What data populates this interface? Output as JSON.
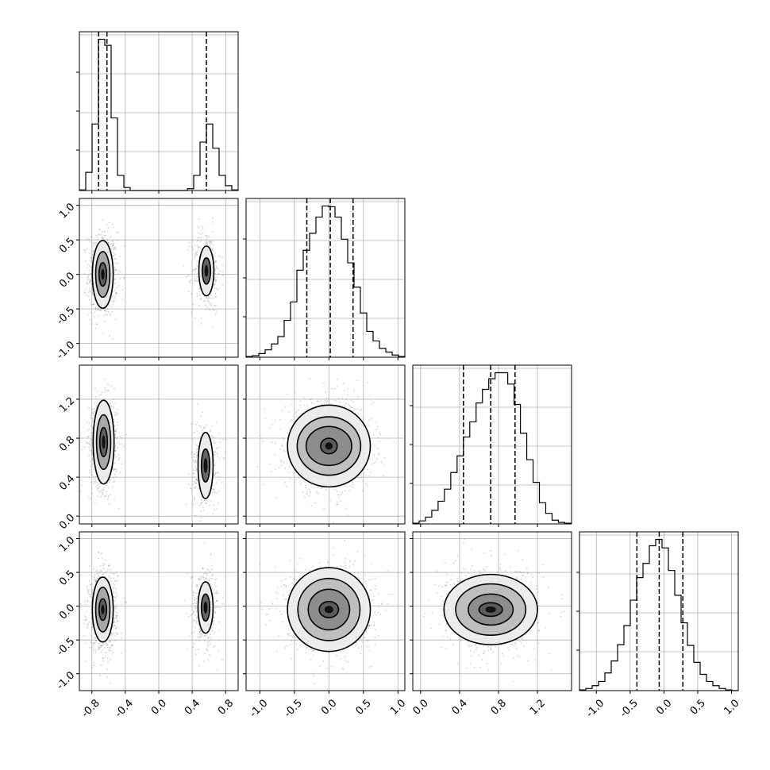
{
  "chart_data": {
    "type": "corner",
    "parameters": [
      "p1",
      "p2",
      "p3",
      "p4"
    ],
    "grid": true,
    "axes": {
      "p1": {
        "lim": [
          -0.95,
          0.95
        ],
        "ticks": [
          "-0.8",
          "-0.4",
          "0.0",
          "0.4",
          "0.8"
        ],
        "tick_values": [
          -0.8,
          -0.4,
          0.0,
          0.4,
          0.8
        ]
      },
      "p2": {
        "lim": [
          -1.2,
          1.1
        ],
        "ticks": [
          "-1.0",
          "-0.5",
          "0.0",
          "0.5",
          "1.0"
        ],
        "tick_values": [
          -1.0,
          -0.5,
          0.0,
          0.5,
          1.0
        ]
      },
      "p3": {
        "lim": [
          -0.08,
          1.55
        ],
        "ticks": [
          "0.0",
          "0.4",
          "0.8",
          "1.2"
        ],
        "tick_values": [
          0.0,
          0.4,
          0.8,
          1.2
        ]
      },
      "p4": {
        "lim": [
          -1.25,
          1.1
        ],
        "ticks": [
          "-1.0",
          "-0.5",
          "0.0",
          "0.5",
          "1.0"
        ],
        "tick_values": [
          -1.0,
          -0.5,
          0.0,
          0.5,
          1.0
        ]
      }
    },
    "histograms": [
      {
        "param": "p1",
        "bin_edges": [
          -0.95,
          -0.874,
          -0.798,
          -0.722,
          -0.646,
          -0.57,
          -0.494,
          -0.418,
          -0.342,
          -0.266,
          -0.19,
          -0.114,
          -0.038,
          0.038,
          0.114,
          0.19,
          0.266,
          0.342,
          0.418,
          0.494,
          0.57,
          0.646,
          0.722,
          0.798,
          0.874,
          0.95
        ],
        "counts": [
          1,
          30,
          110,
          250,
          240,
          120,
          25,
          5,
          0,
          0,
          0,
          0,
          0,
          0,
          0,
          0,
          0,
          3,
          25,
          80,
          110,
          70,
          25,
          8,
          1
        ],
        "quantiles": [
          -0.72,
          -0.62,
          0.57
        ]
      },
      {
        "param": "p2",
        "bin_edges": [
          -1.2,
          -1.108,
          -1.016,
          -0.924,
          -0.832,
          -0.74,
          -0.648,
          -0.556,
          -0.464,
          -0.372,
          -0.28,
          -0.188,
          -0.096,
          -0.004,
          0.088,
          0.18,
          0.272,
          0.364,
          0.456,
          0.548,
          0.64,
          0.732,
          0.824,
          0.916,
          1.008,
          1.1
        ],
        "counts": [
          1,
          2,
          5,
          10,
          18,
          28,
          50,
          75,
          118,
          145,
          168,
          190,
          205,
          204,
          190,
          160,
          128,
          95,
          60,
          35,
          22,
          12,
          7,
          3,
          1
        ],
        "quantiles": [
          -0.32,
          0.02,
          0.35
        ]
      },
      {
        "param": "p3",
        "bin_edges": [
          -0.08,
          -0.015,
          0.05,
          0.115,
          0.18,
          0.245,
          0.31,
          0.375,
          0.44,
          0.505,
          0.57,
          0.635,
          0.7,
          0.765,
          0.83,
          0.895,
          0.96,
          1.025,
          1.09,
          1.155,
          1.22,
          1.285,
          1.35,
          1.415,
          1.48,
          1.545
        ],
        "counts": [
          1,
          4,
          9,
          18,
          30,
          46,
          68,
          90,
          115,
          135,
          160,
          178,
          192,
          200,
          200,
          185,
          158,
          120,
          85,
          55,
          28,
          14,
          5,
          2,
          1
        ],
        "quantiles": [
          0.44,
          0.72,
          0.97
        ]
      },
      {
        "param": "p4",
        "bin_edges": [
          -1.25,
          -1.156,
          -1.062,
          -0.968,
          -0.874,
          -0.78,
          -0.686,
          -0.592,
          -0.498,
          -0.404,
          -0.31,
          -0.216,
          -0.122,
          -0.028,
          0.066,
          0.16,
          0.254,
          0.348,
          0.442,
          0.536,
          0.63,
          0.724,
          0.818,
          0.912,
          1.006,
          1.1
        ],
        "counts": [
          1,
          3,
          7,
          13,
          25,
          42,
          65,
          92,
          128,
          160,
          180,
          205,
          214,
          202,
          170,
          135,
          96,
          64,
          40,
          23,
          13,
          7,
          3,
          1,
          0
        ],
        "quantiles": [
          -0.4,
          -0.07,
          0.28
        ]
      }
    ],
    "pairs": [
      {
        "x": "p1",
        "y": "p2",
        "blobs": [
          {
            "cx": -0.67,
            "cy": 0.0,
            "sx": 0.075,
            "sy": 0.27,
            "weight": 0.68
          },
          {
            "cx": 0.57,
            "cy": 0.05,
            "sx": 0.075,
            "sy": 0.27,
            "weight": 0.32
          }
        ],
        "contours": [
          {
            "cx": -0.67,
            "cy": 0.0,
            "rx": [
              0.045,
              0.085,
              0.125
            ],
            "ry": [
              0.17,
              0.33,
              0.49
            ]
          },
          {
            "cx": 0.57,
            "cy": 0.05,
            "rx": [
              0.05,
              0.09
            ],
            "ry": [
              0.19,
              0.36
            ]
          }
        ]
      },
      {
        "x": "p1",
        "y": "p3",
        "blobs": [
          {
            "cx": -0.66,
            "cy": 0.74,
            "sx": 0.075,
            "sy": 0.2,
            "weight": 0.68
          },
          {
            "cx": 0.56,
            "cy": 0.52,
            "sx": 0.075,
            "sy": 0.2,
            "weight": 0.32
          }
        ],
        "contours": [
          {
            "cx": -0.66,
            "cy": 0.76,
            "rx": [
              0.045,
              0.085,
              0.125
            ],
            "ry": [
              0.15,
              0.28,
              0.43
            ]
          },
          {
            "cx": 0.56,
            "cy": 0.52,
            "rx": [
              0.05,
              0.09
            ],
            "ry": [
              0.17,
              0.34
            ]
          }
        ]
      },
      {
        "x": "p2",
        "y": "p3",
        "blobs": [
          {
            "cx": 0.0,
            "cy": 0.72,
            "sx": 0.27,
            "sy": 0.2,
            "weight": 1.0
          }
        ],
        "contours": [
          {
            "cx": 0.0,
            "cy": 0.72,
            "rx": [
              0.12,
              0.33,
              0.46,
              0.6
            ],
            "ry": [
              0.08,
              0.2,
              0.3,
              0.42
            ]
          }
        ]
      },
      {
        "x": "p1",
        "y": "p4",
        "blobs": [
          {
            "cx": -0.67,
            "cy": -0.05,
            "sx": 0.075,
            "sy": 0.27,
            "weight": 0.68
          },
          {
            "cx": 0.56,
            "cy": -0.02,
            "sx": 0.075,
            "sy": 0.27,
            "weight": 0.32
          }
        ],
        "contours": [
          {
            "cx": -0.67,
            "cy": -0.05,
            "rx": [
              0.045,
              0.085,
              0.125
            ],
            "ry": [
              0.16,
              0.33,
              0.48
            ]
          },
          {
            "cx": 0.56,
            "cy": -0.02,
            "rx": [
              0.05,
              0.09
            ],
            "ry": [
              0.2,
              0.38
            ]
          }
        ]
      },
      {
        "x": "p2",
        "y": "p4",
        "blobs": [
          {
            "cx": 0.0,
            "cy": -0.05,
            "sx": 0.27,
            "sy": 0.27,
            "weight": 1.0
          }
        ],
        "contours": [
          {
            "cx": 0.0,
            "cy": -0.05,
            "rx": [
              0.14,
              0.3,
              0.45,
              0.6
            ],
            "ry": [
              0.12,
              0.3,
              0.46,
              0.62
            ]
          }
        ]
      },
      {
        "x": "p3",
        "y": "p4",
        "blobs": [
          {
            "cx": 0.72,
            "cy": -0.05,
            "sx": 0.2,
            "sy": 0.27,
            "weight": 1.0
          }
        ],
        "contours": [
          {
            "cx": 0.72,
            "cy": -0.05,
            "rx": [
              0.12,
              0.23,
              0.36,
              0.48
            ],
            "ry": [
              0.1,
              0.23,
              0.38,
              0.52
            ]
          }
        ]
      }
    ]
  }
}
